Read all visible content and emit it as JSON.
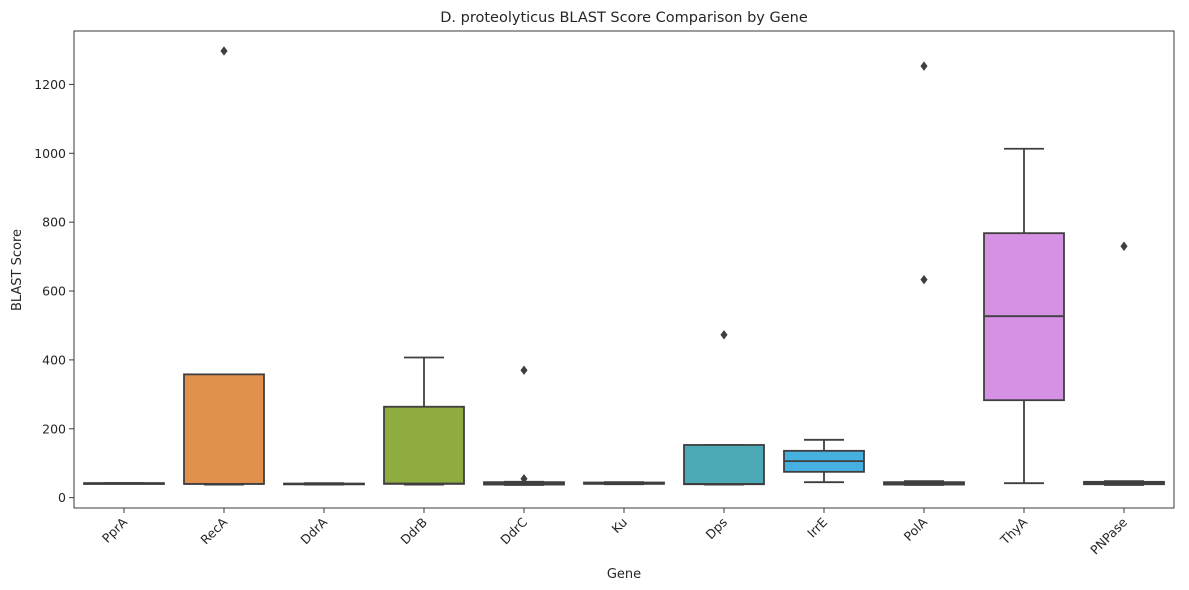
{
  "chart_data": {
    "type": "box",
    "title": "D. proteolyticus BLAST Score Comparison by Gene",
    "xlabel": "Gene",
    "ylabel": "BLAST Score",
    "ylim": [
      -30,
      1355
    ],
    "yticks": [
      0,
      200,
      400,
      600,
      800,
      1000,
      1200
    ],
    "grid": false,
    "categories": [
      "PprA",
      "RecA",
      "DdrA",
      "DdrB",
      "DdrC",
      "Ku",
      "Dps",
      "IrrE",
      "PolA",
      "ThyA",
      "PNPase"
    ],
    "boxes": [
      {
        "category": "PprA",
        "color": "#3f9bd7",
        "whisker_low": 42,
        "q1": 42,
        "median": 42,
        "q3": 42,
        "whisker_high": 42,
        "outliers": []
      },
      {
        "category": "RecA",
        "color": "#e1914b",
        "whisker_low": 38,
        "q1": 40,
        "median": 40,
        "q3": 358,
        "whisker_high": 358,
        "outliers": [
          1297
        ]
      },
      {
        "category": "DdrA",
        "color": "#a9a64a",
        "whisker_low": 38,
        "q1": 39,
        "median": 40,
        "q3": 41,
        "whisker_high": 42,
        "outliers": []
      },
      {
        "category": "DdrB",
        "color": "#8fac40",
        "whisker_low": 38,
        "q1": 40,
        "median": 41,
        "q3": 264,
        "whisker_high": 407,
        "outliers": []
      },
      {
        "category": "DdrC",
        "color": "#3ea65e",
        "whisker_low": 37,
        "q1": 38,
        "median": 41,
        "q3": 45,
        "whisker_high": 46,
        "outliers": [
          55,
          370
        ]
      },
      {
        "category": "Ku",
        "color": "#3da98f",
        "whisker_low": 39,
        "q1": 40,
        "median": 42,
        "q3": 44,
        "whisker_high": 45,
        "outliers": []
      },
      {
        "category": "Dps",
        "color": "#4baab5",
        "whisker_low": 38,
        "q1": 39,
        "median": 40,
        "q3": 153,
        "whisker_high": 153,
        "outliers": [
          473
        ]
      },
      {
        "category": "IrrE",
        "color": "#46b0e0",
        "whisker_low": 45,
        "q1": 75,
        "median": 106,
        "q3": 136,
        "whisker_high": 168,
        "outliers": []
      },
      {
        "category": "PolA",
        "color": "#a2a3e8",
        "whisker_low": 37,
        "q1": 38,
        "median": 41,
        "q3": 45,
        "whisker_high": 48,
        "outliers": [
          633,
          1253
        ]
      },
      {
        "category": "ThyA",
        "color": "#d592e5",
        "whisker_low": 42,
        "q1": 283,
        "median": 527,
        "q3": 768,
        "whisker_high": 1013,
        "outliers": []
      },
      {
        "category": "PNPase",
        "color": "#e08fc0",
        "whisker_low": 37,
        "q1": 39,
        "median": 42,
        "q3": 46,
        "whisker_high": 48,
        "outliers": [
          730
        ]
      }
    ]
  }
}
